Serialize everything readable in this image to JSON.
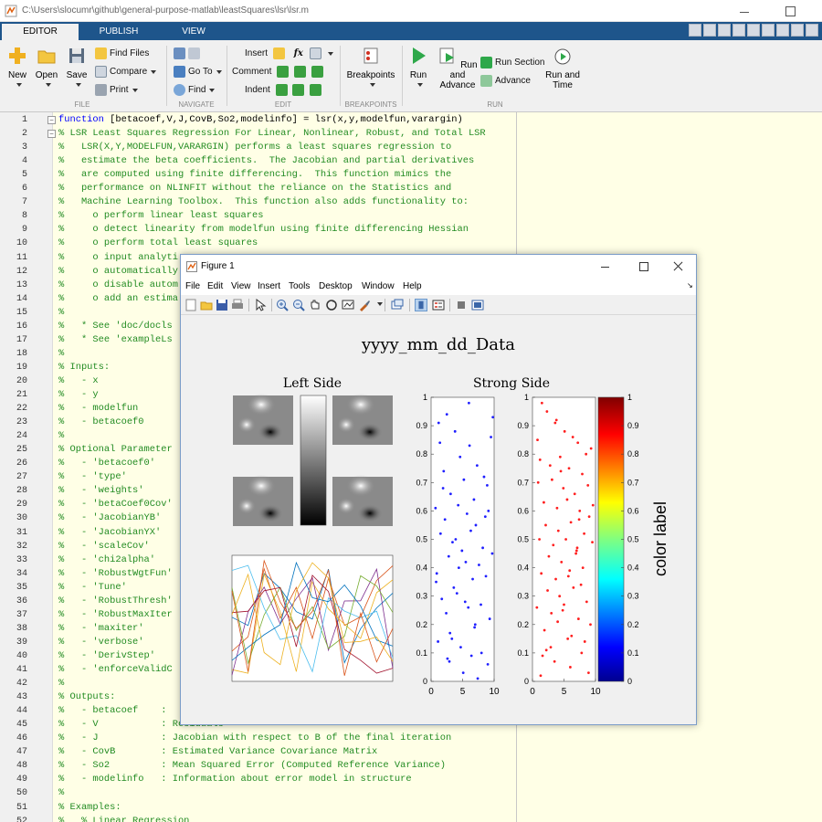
{
  "window": {
    "title": "C:\\Users\\slocumr\\github\\general-purpose-matlab\\leastSquares\\lsr\\lsr.m"
  },
  "tabs": [
    {
      "label": "EDITOR",
      "active": true
    },
    {
      "label": "PUBLISH",
      "active": false
    },
    {
      "label": "VIEW",
      "active": false
    }
  ],
  "ribbon": {
    "file": {
      "new": "New",
      "open": "Open",
      "save": "Save",
      "find_files": "Find Files",
      "compare": "Compare",
      "print": "Print",
      "section": "FILE"
    },
    "navigate": {
      "go_to": "Go To",
      "find": "Find",
      "section": "NAVIGATE"
    },
    "edit": {
      "insert": "Insert",
      "comment": "Comment",
      "indent": "Indent",
      "fx": "fx",
      "section": "EDIT"
    },
    "breakpoints": {
      "breakpoints": "Breakpoints",
      "section": "BREAKPOINTS"
    },
    "run": {
      "run": "Run",
      "run_and_advance_1": "Run and",
      "run_and_advance_2": "Advance",
      "run_section": "Run Section",
      "advance": "Advance",
      "run_and_time_1": "Run and",
      "run_and_time_2": "Time",
      "section": "RUN"
    }
  },
  "editor": {
    "lines": [
      {
        "n": "1",
        "kw": "function",
        "text": " [betacoef,V,J,CovB,So2,modelinfo] = lsr(x,y,modelfun,varargin)"
      },
      {
        "n": "2",
        "text": "% LSR Least Squares Regression For Linear, Nonlinear, Robust, and Total LSR"
      },
      {
        "n": "3",
        "text": "%   LSR(X,Y,MODELFUN,VARARGIN) performs a least squares regression to"
      },
      {
        "n": "4",
        "text": "%   estimate the beta coefficients.  The Jacobian and partial derivatives"
      },
      {
        "n": "5",
        "text": "%   are computed using finite differencing.  This function mimics the"
      },
      {
        "n": "6",
        "text": "%   performance on NLINFIT without the reliance on the Statistics and"
      },
      {
        "n": "7",
        "text": "%   Machine Learning Toolbox.  This function also adds functionality to:"
      },
      {
        "n": "8",
        "text": "%     o perform linear least squares"
      },
      {
        "n": "9",
        "text": "%     o detect linearity from modelfun using finite differencing Hessian"
      },
      {
        "n": "10",
        "text": "%     o perform total least squares"
      },
      {
        "n": "11",
        "text": "%     o input analyti"
      },
      {
        "n": "12",
        "text": "%     o automatically"
      },
      {
        "n": "13",
        "text": "%     o disable autom"
      },
      {
        "n": "14",
        "text": "%     o add an estima"
      },
      {
        "n": "15",
        "text": "%"
      },
      {
        "n": "16",
        "text": "%   * See 'doc/docls"
      },
      {
        "n": "17",
        "text": "%   * See 'exampleLs"
      },
      {
        "n": "18",
        "text": "%"
      },
      {
        "n": "19",
        "text": "% Inputs:"
      },
      {
        "n": "20",
        "text": "%   - x"
      },
      {
        "n": "21",
        "text": "%   - y"
      },
      {
        "n": "22",
        "text": "%   - modelfun"
      },
      {
        "n": "23",
        "text": "%   - betacoef0"
      },
      {
        "n": "24",
        "text": "%"
      },
      {
        "n": "25",
        "text": "% Optional Parameter"
      },
      {
        "n": "26",
        "text": "%   - 'betacoef0'"
      },
      {
        "n": "27",
        "text": "%   - 'type'"
      },
      {
        "n": "28",
        "text": "%   - 'weights'"
      },
      {
        "n": "29",
        "text": "%   - 'betaCoef0Cov'"
      },
      {
        "n": "30",
        "text": "%   - 'JacobianYB'"
      },
      {
        "n": "31",
        "text": "%   - 'JacobianYX'"
      },
      {
        "n": "32",
        "text": "%   - 'scaleCov'"
      },
      {
        "n": "33",
        "text": "%   - 'chi2alpha'"
      },
      {
        "n": "34",
        "text": "%   - 'RobustWgtFun'"
      },
      {
        "n": "35",
        "text": "%   - 'Tune'"
      },
      {
        "n": "36",
        "text": "%   - 'RobustThresh'"
      },
      {
        "n": "37",
        "text": "%   - 'RobustMaxIter"
      },
      {
        "n": "38",
        "text": "%   - 'maxiter'"
      },
      {
        "n": "39",
        "text": "%   - 'verbose'"
      },
      {
        "n": "40",
        "text": "%   - 'DerivStep'"
      },
      {
        "n": "41",
        "text": "%   - 'enforceValidC"
      },
      {
        "n": "42",
        "text": "%"
      },
      {
        "n": "43",
        "text": "% Outputs:"
      },
      {
        "n": "44",
        "text": "%   - betacoef    :"
      },
      {
        "n": "45",
        "text": "%   - V           : Residuals"
      },
      {
        "n": "46",
        "text": "%   - J           : Jacobian with respect to B of the final iteration"
      },
      {
        "n": "47",
        "text": "%   - CovB        : Estimated Variance Covariance Matrix"
      },
      {
        "n": "48",
        "text": "%   - So2         : Mean Squared Error (Computed Reference Variance)"
      },
      {
        "n": "49",
        "text": "%   - modelinfo   : Information about error model in structure"
      },
      {
        "n": "50",
        "text": "%"
      },
      {
        "n": "51",
        "text": "% Examples:"
      },
      {
        "n": "52",
        "text": "%   % Linear Regression"
      }
    ]
  },
  "figure": {
    "title": "Figure 1",
    "menu": [
      "File",
      "Edit",
      "View",
      "Insert",
      "Tools",
      "Desktop",
      "Window",
      "Help"
    ],
    "plot_title": "yyyy_mm_dd_Data",
    "left_subtitle": "Left Side",
    "right_subtitle": "Strong Side",
    "colorbar_label": "color label"
  },
  "chart_data": [
    {
      "type": "scatter",
      "name": "blue-scatter",
      "xlim": [
        0,
        10
      ],
      "ylim": [
        0,
        1
      ],
      "xticks": [
        "0",
        "5",
        "10"
      ],
      "yticks": [
        "0",
        "0.1",
        "0.2",
        "0.3",
        "0.4",
        "0.5",
        "0.6",
        "0.7",
        "0.8",
        "0.9",
        "1"
      ],
      "color": "#1f1fff",
      "x": [
        1.2,
        2.5,
        3.8,
        4.6,
        6.1,
        7.3,
        8.4,
        9.5,
        1.9,
        3.1,
        5.2,
        6.8,
        8.9,
        0.7,
        2.2,
        4.3,
        5.7,
        7.1,
        9.1,
        1.5,
        3.4,
        6.3,
        8.2,
        2.8,
        4.9,
        7.6,
        9.7,
        0.9,
        5.5,
        6.6,
        3.6,
        8.7,
        1.7,
        4.1,
        7.9,
        2.4,
        5.9,
        9.3,
        6.9,
        3.0,
        1.1,
        4.7,
        8.0,
        2.6,
        6.4,
        9.0,
        5.1,
        7.4,
        3.3,
        0.8,
        2.0,
        6.0,
        8.6,
        4.4,
        1.4,
        7.0,
        9.8,
        3.9,
        5.4,
        2.9
      ],
      "y": [
        0.91,
        0.94,
        0.88,
        0.79,
        0.83,
        0.76,
        0.72,
        0.86,
        0.68,
        0.66,
        0.71,
        0.64,
        0.69,
        0.61,
        0.57,
        0.62,
        0.59,
        0.55,
        0.6,
        0.52,
        0.49,
        0.53,
        0.47,
        0.44,
        0.46,
        0.41,
        0.45,
        0.38,
        0.42,
        0.36,
        0.33,
        0.37,
        0.29,
        0.31,
        0.27,
        0.24,
        0.26,
        0.22,
        0.19,
        0.17,
        0.14,
        0.12,
        0.1,
        0.08,
        0.09,
        0.06,
        0.03,
        0.01,
        0.15,
        0.35,
        0.74,
        0.98,
        0.58,
        0.4,
        0.84,
        0.2,
        0.93,
        0.5,
        0.28,
        0.07
      ]
    },
    {
      "type": "scatter",
      "name": "red-scatter",
      "xlim": [
        0,
        10
      ],
      "ylim": [
        0,
        1
      ],
      "xticks": [
        "0",
        "5",
        "10"
      ],
      "yticks": [
        "0",
        "0.1",
        "0.2",
        "0.3",
        "0.4",
        "0.5",
        "0.6",
        "0.7",
        "0.8",
        "0.9",
        "1"
      ],
      "color": "#ff1f1f",
      "x": [
        1.5,
        2.3,
        3.6,
        5.1,
        6.4,
        7.2,
        8.5,
        9.3,
        1.2,
        2.8,
        4.4,
        5.8,
        7.9,
        0.9,
        3.1,
        4.9,
        6.7,
        8.8,
        1.8,
        3.9,
        5.5,
        7.5,
        9.0,
        2.1,
        4.1,
        6.1,
        8.2,
        1.1,
        3.3,
        5.3,
        7.0,
        9.5,
        2.6,
        4.6,
        6.9,
        8.0,
        1.4,
        3.7,
        5.9,
        7.7,
        2.4,
        4.3,
        6.5,
        8.6,
        0.7,
        3.0,
        5.0,
        7.3,
        9.2,
        1.9,
        4.0,
        6.2,
        8.3,
        2.9,
        5.6,
        7.8,
        1.6,
        3.5,
        6.0,
        8.9,
        2.2,
        4.8,
        7.1,
        9.6,
        0.8,
        3.8,
        5.7,
        7.4,
        1.3,
        4.5
      ],
      "y": [
        0.98,
        0.95,
        0.91,
        0.88,
        0.86,
        0.84,
        0.8,
        0.82,
        0.78,
        0.76,
        0.79,
        0.75,
        0.73,
        0.7,
        0.71,
        0.68,
        0.66,
        0.69,
        0.63,
        0.61,
        0.64,
        0.6,
        0.58,
        0.55,
        0.53,
        0.56,
        0.52,
        0.5,
        0.48,
        0.5,
        0.46,
        0.49,
        0.44,
        0.42,
        0.45,
        0.4,
        0.38,
        0.36,
        0.39,
        0.34,
        0.32,
        0.3,
        0.33,
        0.28,
        0.26,
        0.24,
        0.27,
        0.22,
        0.2,
        0.18,
        0.21,
        0.16,
        0.14,
        0.12,
        0.15,
        0.1,
        0.09,
        0.07,
        0.05,
        0.03,
        0.11,
        0.25,
        0.47,
        0.62,
        0.85,
        0.92,
        0.37,
        0.57,
        0.02,
        0.74
      ]
    },
    {
      "type": "heatmap",
      "name": "colorbar-jet",
      "ylim": [
        0,
        1
      ],
      "yticks": [
        "0",
        "0.1",
        "0.2",
        "0.3",
        "0.4",
        "0.5",
        "0.6",
        "0.7",
        "0.8",
        "0.9",
        "1"
      ],
      "colormap": "jet"
    },
    {
      "type": "line",
      "name": "multi-line",
      "series_count": 10
    }
  ]
}
